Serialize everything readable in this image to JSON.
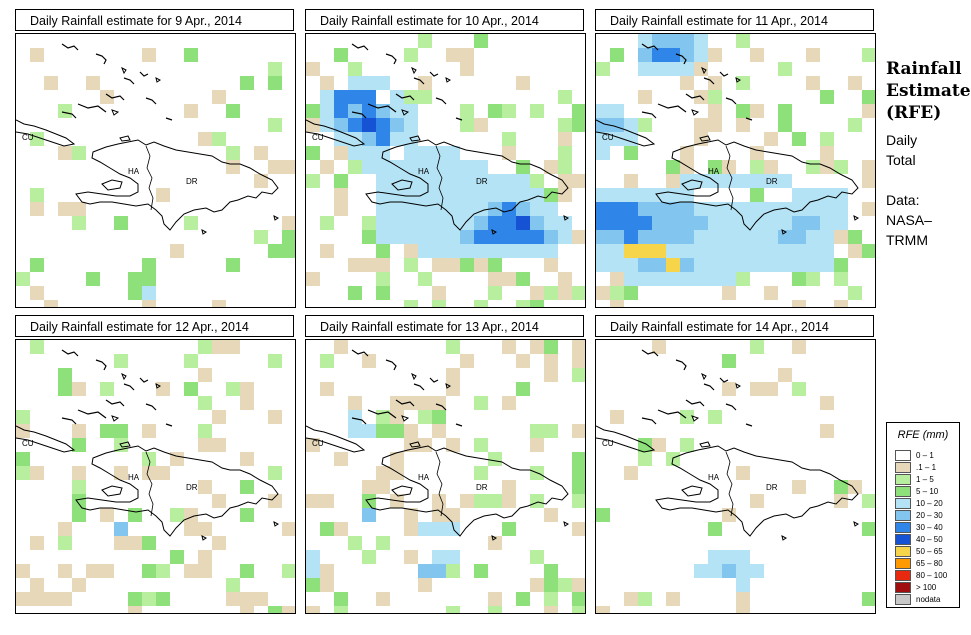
{
  "panels": [
    {
      "title": "Daily Rainfall estimate for  9 Apr., 2014",
      "seed": 11,
      "density": 0.1,
      "cells": [
        [
          5,
          17,
          3
        ],
        [
          8,
          17,
          3
        ],
        [
          9,
          18,
          4
        ],
        [
          8,
          18,
          3
        ]
      ]
    },
    {
      "title": "Daily Rainfall estimate for  10 Apr., 2014",
      "seed": 23,
      "density": 0.3,
      "cells": [
        [
          2,
          4,
          6
        ],
        [
          2,
          5,
          6
        ],
        [
          3,
          4,
          6
        ],
        [
          3,
          5,
          5
        ],
        [
          4,
          4,
          6
        ],
        [
          4,
          5,
          6
        ],
        [
          2,
          6,
          5
        ],
        [
          3,
          6,
          6
        ],
        [
          4,
          6,
          7
        ],
        [
          5,
          5,
          5
        ],
        [
          5,
          6,
          6
        ],
        [
          5,
          7,
          6
        ],
        [
          6,
          6,
          5
        ],
        [
          3,
          7,
          4
        ],
        [
          4,
          7,
          5
        ],
        [
          6,
          5,
          4
        ],
        [
          6,
          7,
          4
        ],
        [
          7,
          6,
          4
        ],
        [
          7,
          7,
          4
        ],
        [
          1,
          5,
          4
        ],
        [
          1,
          6,
          4
        ],
        [
          2,
          7,
          4
        ],
        [
          1,
          4,
          4
        ],
        [
          3,
          3,
          4
        ],
        [
          5,
          3,
          4
        ],
        [
          4,
          3,
          4
        ],
        [
          6,
          4,
          4
        ],
        [
          7,
          5,
          4
        ],
        [
          8,
          8,
          4
        ],
        [
          9,
          8,
          4
        ],
        [
          10,
          8,
          4
        ],
        [
          8,
          9,
          4
        ],
        [
          9,
          9,
          4
        ],
        [
          7,
          8,
          4
        ],
        [
          8,
          10,
          4
        ],
        [
          9,
          10,
          4
        ],
        [
          10,
          9,
          4
        ],
        [
          6,
          9,
          4
        ],
        [
          5,
          9,
          4
        ],
        [
          6,
          10,
          4
        ],
        [
          7,
          9,
          4
        ],
        [
          5,
          10,
          4
        ],
        [
          6,
          11,
          4
        ],
        [
          5,
          11,
          4
        ],
        [
          7,
          10,
          4
        ],
        [
          6,
          12,
          4
        ],
        [
          7,
          11,
          4
        ],
        [
          8,
          11,
          4
        ],
        [
          9,
          11,
          4
        ],
        [
          10,
          10,
          4
        ],
        [
          11,
          10,
          4
        ],
        [
          11,
          9,
          4
        ],
        [
          12,
          9,
          4
        ],
        [
          5,
          8,
          4
        ],
        [
          4,
          8,
          4
        ],
        [
          4,
          9,
          4
        ],
        [
          3,
          8,
          4
        ],
        [
          14,
          13,
          6
        ],
        [
          14,
          14,
          6
        ],
        [
          13,
          14,
          6
        ],
        [
          13,
          13,
          6
        ],
        [
          15,
          13,
          7
        ],
        [
          14,
          12,
          6
        ],
        [
          15,
          14,
          6
        ],
        [
          15,
          12,
          5
        ],
        [
          16,
          13,
          5
        ],
        [
          16,
          14,
          6
        ],
        [
          17,
          13,
          4
        ],
        [
          17,
          14,
          5
        ],
        [
          12,
          13,
          5
        ],
        [
          12,
          14,
          6
        ],
        [
          11,
          13,
          4
        ],
        [
          11,
          14,
          5
        ],
        [
          13,
          12,
          5
        ],
        [
          12,
          12,
          4
        ],
        [
          13,
          15,
          4
        ],
        [
          14,
          15,
          4
        ],
        [
          10,
          14,
          4
        ],
        [
          10,
          13,
          4
        ],
        [
          6,
          13,
          4
        ],
        [
          7,
          13,
          4
        ],
        [
          6,
          14,
          4
        ],
        [
          8,
          14,
          4
        ],
        [
          7,
          14,
          4
        ],
        [
          13,
          11,
          4
        ],
        [
          14,
          11,
          4
        ],
        [
          16,
          12,
          4
        ],
        [
          17,
          12,
          4
        ],
        [
          18,
          13,
          4
        ],
        [
          18,
          14,
          4
        ],
        [
          17,
          15,
          4
        ],
        [
          16,
          15,
          4
        ],
        [
          15,
          15,
          4
        ],
        [
          16,
          11,
          4
        ],
        [
          15,
          11,
          4
        ],
        [
          14,
          10,
          4
        ],
        [
          15,
          10,
          4
        ],
        [
          11,
          15,
          4
        ],
        [
          12,
          15,
          4
        ],
        [
          9,
          14,
          4
        ],
        [
          8,
          13,
          4
        ],
        [
          9,
          13,
          4
        ],
        [
          10,
          11,
          4
        ],
        [
          12,
          11,
          4
        ],
        [
          11,
          11,
          4
        ],
        [
          11,
          12,
          4
        ],
        [
          10,
          12,
          4
        ],
        [
          9,
          12,
          4
        ],
        [
          8,
          12,
          4
        ],
        [
          7,
          12,
          4
        ],
        [
          10,
          15,
          4
        ],
        [
          9,
          15,
          4
        ],
        [
          8,
          15,
          4
        ],
        [
          5,
          12,
          4
        ],
        [
          5,
          13,
          4
        ],
        [
          5,
          14,
          4
        ],
        [
          13,
          10,
          4
        ],
        [
          12,
          10,
          4
        ]
      ]
    },
    {
      "title": "Daily Rainfall estimate for  11 Apr., 2014",
      "seed": 37,
      "density": 0.26,
      "cells": [
        [
          0,
          12,
          6
        ],
        [
          1,
          12,
          6
        ],
        [
          2,
          12,
          6
        ],
        [
          0,
          13,
          6
        ],
        [
          1,
          13,
          6
        ],
        [
          2,
          13,
          6
        ],
        [
          3,
          12,
          5
        ],
        [
          3,
          13,
          6
        ],
        [
          4,
          12,
          5
        ],
        [
          4,
          13,
          5
        ],
        [
          5,
          13,
          5
        ],
        [
          0,
          14,
          5
        ],
        [
          1,
          14,
          5
        ],
        [
          2,
          14,
          6
        ],
        [
          3,
          14,
          5
        ],
        [
          4,
          14,
          5
        ],
        [
          5,
          14,
          5
        ],
        [
          6,
          14,
          5
        ],
        [
          5,
          12,
          5
        ],
        [
          6,
          12,
          5
        ],
        [
          6,
          13,
          5
        ],
        [
          7,
          13,
          5
        ],
        [
          7,
          14,
          4
        ],
        [
          8,
          14,
          4
        ],
        [
          8,
          13,
          4
        ],
        [
          9,
          13,
          4
        ],
        [
          9,
          14,
          4
        ],
        [
          10,
          14,
          4
        ],
        [
          10,
          13,
          4
        ],
        [
          11,
          13,
          4
        ],
        [
          11,
          14,
          4
        ],
        [
          12,
          14,
          4
        ],
        [
          12,
          13,
          4
        ],
        [
          13,
          13,
          4
        ],
        [
          13,
          14,
          5
        ],
        [
          14,
          14,
          5
        ],
        [
          14,
          13,
          5
        ],
        [
          15,
          13,
          5
        ],
        [
          15,
          14,
          4
        ],
        [
          16,
          14,
          4
        ],
        [
          16,
          13,
          4
        ],
        [
          17,
          13,
          4
        ],
        [
          17,
          12,
          4
        ],
        [
          16,
          12,
          4
        ],
        [
          15,
          12,
          4
        ],
        [
          14,
          12,
          4
        ],
        [
          13,
          12,
          4
        ],
        [
          12,
          12,
          4
        ],
        [
          11,
          12,
          4
        ],
        [
          10,
          12,
          4
        ],
        [
          9,
          12,
          4
        ],
        [
          8,
          12,
          4
        ],
        [
          7,
          12,
          4
        ],
        [
          6,
          11,
          4
        ],
        [
          5,
          11,
          4
        ],
        [
          4,
          11,
          4
        ],
        [
          3,
          11,
          4
        ],
        [
          2,
          11,
          4
        ],
        [
          1,
          11,
          4
        ],
        [
          0,
          11,
          4
        ],
        [
          0,
          15,
          4
        ],
        [
          1,
          15,
          4
        ],
        [
          2,
          15,
          4
        ],
        [
          3,
          15,
          4
        ],
        [
          4,
          15,
          4
        ],
        [
          5,
          15,
          4
        ],
        [
          6,
          15,
          4
        ],
        [
          7,
          15,
          4
        ],
        [
          8,
          15,
          4
        ],
        [
          9,
          15,
          4
        ],
        [
          3,
          16,
          5
        ],
        [
          4,
          16,
          5
        ],
        [
          5,
          16,
          5
        ],
        [
          6,
          16,
          5
        ],
        [
          2,
          16,
          4
        ],
        [
          7,
          16,
          4
        ],
        [
          8,
          16,
          4
        ],
        [
          1,
          16,
          4
        ],
        [
          0,
          16,
          4
        ],
        [
          2,
          17,
          4
        ],
        [
          3,
          17,
          4
        ],
        [
          4,
          17,
          4
        ],
        [
          5,
          17,
          4
        ],
        [
          6,
          17,
          4
        ],
        [
          7,
          17,
          4
        ],
        [
          8,
          17,
          4
        ],
        [
          9,
          17,
          4
        ],
        [
          3,
          15,
          8
        ],
        [
          4,
          15,
          8
        ],
        [
          5,
          16,
          8
        ],
        [
          2,
          15,
          8
        ],
        [
          9,
          16,
          4
        ],
        [
          10,
          16,
          4
        ],
        [
          11,
          16,
          4
        ],
        [
          12,
          15,
          4
        ],
        [
          13,
          15,
          4
        ],
        [
          14,
          15,
          4
        ],
        [
          15,
          15,
          4
        ],
        [
          16,
          15,
          4
        ],
        [
          11,
          15,
          4
        ],
        [
          10,
          15,
          4
        ],
        [
          12,
          16,
          4
        ],
        [
          13,
          16,
          4
        ],
        [
          14,
          16,
          4
        ],
        [
          15,
          16,
          4
        ],
        [
          16,
          16,
          4
        ],
        [
          0,
          5,
          4
        ],
        [
          1,
          5,
          4
        ],
        [
          0,
          6,
          5
        ],
        [
          1,
          6,
          5
        ],
        [
          0,
          7,
          4
        ],
        [
          1,
          7,
          4
        ],
        [
          2,
          6,
          4
        ],
        [
          2,
          7,
          4
        ],
        [
          0,
          8,
          4
        ],
        [
          4,
          1,
          6
        ],
        [
          5,
          1,
          6
        ],
        [
          4,
          0,
          5
        ],
        [
          5,
          0,
          5
        ],
        [
          6,
          0,
          5
        ],
        [
          6,
          1,
          5
        ],
        [
          3,
          1,
          5
        ],
        [
          3,
          0,
          4
        ],
        [
          7,
          0,
          4
        ],
        [
          7,
          1,
          4
        ],
        [
          5,
          2,
          4
        ],
        [
          4,
          2,
          4
        ],
        [
          6,
          2,
          4
        ],
        [
          3,
          2,
          4
        ],
        [
          6,
          10,
          4
        ],
        [
          7,
          10,
          4
        ],
        [
          8,
          10,
          4
        ],
        [
          9,
          10,
          4
        ],
        [
          10,
          10,
          4
        ],
        [
          11,
          10,
          4
        ],
        [
          12,
          10,
          4
        ],
        [
          13,
          10,
          4
        ],
        [
          14,
          11,
          4
        ],
        [
          15,
          11,
          4
        ],
        [
          16,
          11,
          4
        ],
        [
          17,
          11,
          4
        ]
      ]
    },
    {
      "title": "Daily Rainfall estimate for  12 Apr., 2014",
      "seed": 51,
      "density": 0.24,
      "cells": [
        [
          7,
          13,
          5
        ]
      ]
    },
    {
      "title": "Daily Rainfall estimate for  13 Apr., 2014",
      "seed": 67,
      "density": 0.22,
      "cells": [
        [
          4,
          12,
          5
        ],
        [
          8,
          16,
          5
        ],
        [
          9,
          16,
          5
        ],
        [
          8,
          13,
          4
        ],
        [
          9,
          13,
          4
        ],
        [
          10,
          13,
          4
        ],
        [
          9,
          15,
          4
        ],
        [
          10,
          15,
          4
        ],
        [
          0,
          16,
          4
        ],
        [
          0,
          15,
          4
        ],
        [
          3,
          5,
          4
        ],
        [
          4,
          6,
          4
        ],
        [
          3,
          6,
          4
        ]
      ]
    },
    {
      "title": "Daily Rainfall estimate for  14 Apr., 2014",
      "seed": 79,
      "density": 0.1,
      "cells": [
        [
          9,
          16,
          5
        ],
        [
          8,
          15,
          4
        ],
        [
          9,
          15,
          4
        ],
        [
          10,
          16,
          4
        ],
        [
          10,
          15,
          4
        ],
        [
          8,
          16,
          4
        ],
        [
          7,
          16,
          4
        ],
        [
          10,
          17,
          4
        ],
        [
          11,
          16,
          4
        ]
      ]
    }
  ],
  "map_labels": {
    "cuba": "CU",
    "haiti": "HA",
    "dr": "DR"
  },
  "side": {
    "title_line1": "Rainfall",
    "title_line2": "Estimate",
    "title_line3": "(RFE)",
    "daily_line1": "Daily",
    "daily_line2": "Total",
    "data_line1": "Data:",
    "data_line2": "NASA–",
    "data_line3": "TRMM"
  },
  "legend": {
    "title": "RFE (mm)",
    "items": [
      {
        "label": "0 – 1",
        "color": "#ffffff"
      },
      {
        "label": ".1 – 1",
        "color": "#e6d8b8"
      },
      {
        "label": "1 – 5",
        "color": "#b7ef9f"
      },
      {
        "label": "5 – 10",
        "color": "#8ee07a"
      },
      {
        "label": "10 – 20",
        "color": "#b4e3f5"
      },
      {
        "label": "20 – 30",
        "color": "#82c6f0"
      },
      {
        "label": "30 – 40",
        "color": "#2f86e8"
      },
      {
        "label": "40 – 50",
        "color": "#1552d4"
      },
      {
        "label": "50 – 65",
        "color": "#f7d54a"
      },
      {
        "label": "65 – 80",
        "color": "#ff9900"
      },
      {
        "label": "80 – 100",
        "color": "#e8280f"
      },
      {
        "label": "> 100",
        "color": "#a00f0f"
      },
      {
        "label": "nodata",
        "color": "#c8c8c8"
      }
    ]
  }
}
